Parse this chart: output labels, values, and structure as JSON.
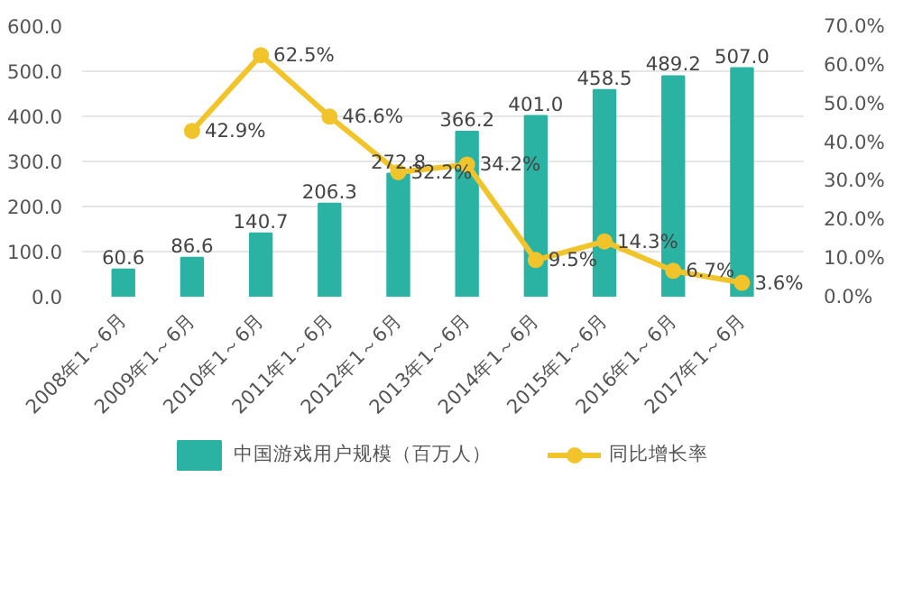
{
  "chart_data": {
    "type": "bar",
    "categories": [
      "2008年1～6月",
      "2009年1～6月",
      "2010年1～6月",
      "2011年1～6月",
      "2012年1～6月",
      "2013年1～6月",
      "2014年1～6月",
      "2015年1～6月",
      "2016年1～6月",
      "2017年1～6月"
    ],
    "series": [
      {
        "name": "中国游戏用户规模（百万人）",
        "color": "#2ab3a3",
        "values": [
          60.6,
          86.6,
          140.7,
          206.3,
          272.8,
          366.2,
          401.0,
          458.5,
          489.2,
          507.0
        ],
        "value_labels": [
          "60.6",
          "86.6",
          "140.7",
          "206.3",
          "272.8",
          "366.2",
          "401.0",
          "458.5",
          "489.2",
          "507.0"
        ]
      },
      {
        "name": "同比增长率",
        "type": "line",
        "axis": "y2",
        "color": "#f2c42c",
        "marker": "circle",
        "values": [
          null,
          42.9,
          62.5,
          46.6,
          32.2,
          34.2,
          9.5,
          14.3,
          6.7,
          3.6
        ],
        "value_labels": [
          null,
          "42.9%",
          "62.5%",
          "46.6%",
          "32.2%",
          "34.2%",
          "9.5%",
          "14.3%",
          "6.7%",
          "3.6%"
        ]
      }
    ],
    "ylim": [
      0,
      600
    ],
    "yticks": [
      {
        "value": 0,
        "label": "0.0"
      },
      {
        "value": 100,
        "label": "100.0"
      },
      {
        "value": 200,
        "label": "200.0"
      },
      {
        "value": 300,
        "label": "300.0"
      },
      {
        "value": 400,
        "label": "400.0"
      },
      {
        "value": 500,
        "label": "500.0"
      },
      {
        "value": 600,
        "label": "600.0"
      }
    ],
    "y2lim": [
      0,
      70
    ],
    "y2ticks": [
      {
        "value": 0,
        "label": "0.0%"
      },
      {
        "value": 10,
        "label": "10.0%"
      },
      {
        "value": 20,
        "label": "20.0%"
      },
      {
        "value": 30,
        "label": "30.0%"
      },
      {
        "value": 40,
        "label": "40.0%"
      },
      {
        "value": 50,
        "label": "50.0%"
      },
      {
        "value": 60,
        "label": "60.0%"
      },
      {
        "value": 70,
        "label": "70.0%"
      }
    ],
    "grid": "y",
    "legend": "bottom"
  }
}
